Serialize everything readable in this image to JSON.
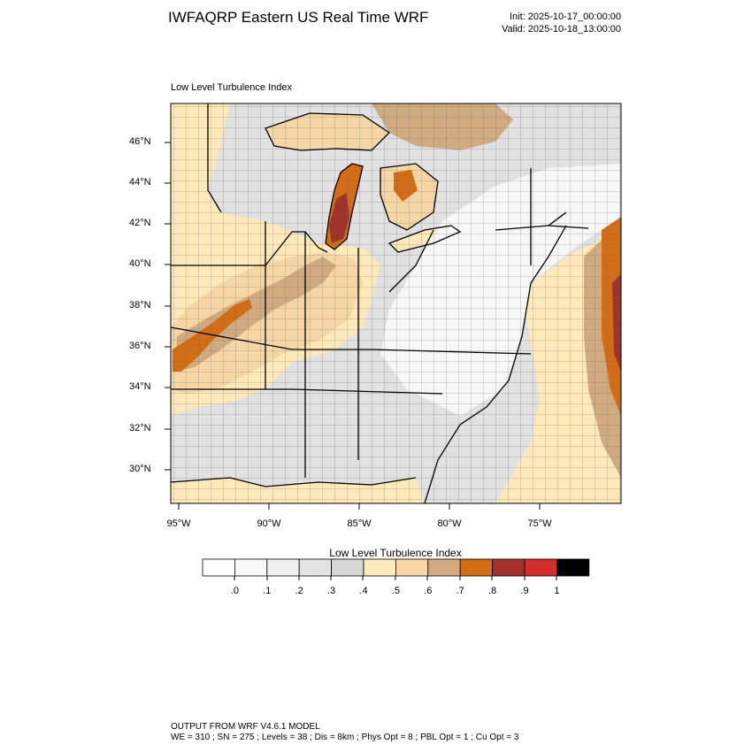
{
  "header": {
    "title": "IWFAQRP Eastern US Real Time WRF",
    "init": "Init: 2025-10-17_00:00:00",
    "valid": "Valid: 2025-10-18_13:00:00"
  },
  "map": {
    "subtitle": "Low Level Turbulence Index",
    "lat_labels": [
      "46°N",
      "44°N",
      "42°N",
      "40°N",
      "38°N",
      "36°N",
      "34°N",
      "32°N",
      "30°N"
    ],
    "lon_labels": [
      "95°W",
      "90°W",
      "85°W",
      "80°W",
      "75°W"
    ]
  },
  "colorbar": {
    "title": "Low Level Turbulence Index",
    "colors": [
      "#ffffff",
      "#f8f8f8",
      "#efefef",
      "#e3e3e3",
      "#d6d6d6",
      "#ffe9b8",
      "#f6d6a4",
      "#d2aa80",
      "#d36c12",
      "#a4302b",
      "#d42b2b",
      "#000000"
    ],
    "labels": [
      ".0",
      ".1",
      ".2",
      ".3",
      ".4",
      ".5",
      ".6",
      ".7",
      ".8",
      ".9",
      "1"
    ]
  },
  "footer": {
    "line1": "OUTPUT FROM WRF V4.6.1 MODEL",
    "line2": "WE = 310 ; SN = 275 ; Levels = 38 ; Dis = 8km ; Phys Opt = 8 ; PBL Opt = 1 ; Cu Opt = 3"
  }
}
